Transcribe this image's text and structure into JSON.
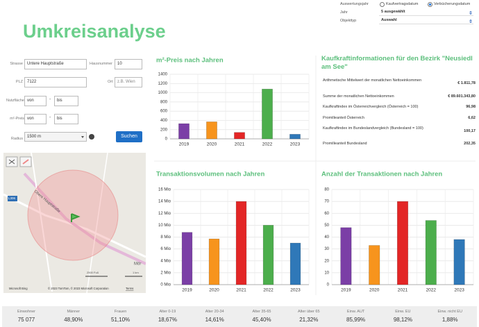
{
  "header": {
    "title": "Umkreisanalyse"
  },
  "filters": {
    "year_basis_label": "Auswertungsjahr",
    "options": [
      "Kaufvertragsdatum",
      "Verbücherungsdatum"
    ],
    "selected": "Verbücherungsdatum",
    "year_label": "Jahr",
    "year_value": "5 ausgewählt",
    "type_label": "Objekttyp",
    "type_value": "Auswahl"
  },
  "form": {
    "street_label": "Strasse",
    "street": "Untere Hauptstraße",
    "number_label": "Hausnummer",
    "number": "10",
    "zip_label": "PLZ",
    "zip": "7122",
    "city_label": "Ort",
    "city": "z.B. Wien",
    "area_label": "Nutzfläche",
    "price_label": "m²-Preis",
    "from": "von",
    "separator": "-",
    "to": "bis",
    "radius_label": "Radius",
    "radius": "1500 m",
    "button": "Suchen"
  },
  "map": {
    "road": "Obere Hauptstraße",
    "road_number": "L306",
    "town": "Mör",
    "scale_ft": "2500 Fuß",
    "scale_km": "1 km",
    "copyright": "© 2023 TomTom, © 2023 Microsoft Corporation",
    "terms": "Terms",
    "brand": "Microsoft Bing"
  },
  "info": {
    "title": "Kaufkraftinformationen für den Bezirk \"Neusiedl am See\"",
    "rows": [
      [
        "Arithmetische Mittelwert der monatlichen Nettoeinkommen",
        "€ 1.811,78"
      ],
      [
        "Summe der monatlichen Nettoeinkommen",
        "€ 89.601.343,80"
      ],
      [
        "Kaufkraftindex im Österreichvergleich (Österreich = 100)",
        "96,98"
      ],
      [
        "Promilleanteil Österreich",
        "6,62"
      ],
      [
        "Kaufkraftindex im Bundeslandvergleich (Bundesland = 100)",
        "100,17"
      ],
      [
        "Promilleanteil Bundesland",
        "202,35"
      ]
    ]
  },
  "stats": [
    {
      "label": "Einwohner",
      "value": "75 077"
    },
    {
      "label": "Männer",
      "value": "48,90%"
    },
    {
      "label": "Frauen",
      "value": "51,10%"
    },
    {
      "label": "Alter 0-19",
      "value": "18,67%"
    },
    {
      "label": "Alter 20-34",
      "value": "14,61%"
    },
    {
      "label": "Alter 35-65",
      "value": "45,40%"
    },
    {
      "label": "Alter über 65",
      "value": "21,32%"
    },
    {
      "label": "Einw. AUT",
      "value": "85,99%"
    },
    {
      "label": "Einw. EU",
      "value": "98,12%"
    },
    {
      "label": "Einw. nicht EU",
      "value": "1,88%"
    }
  ],
  "chart_data": [
    {
      "type": "bar",
      "title": "m²-Preis nach Jahren",
      "categories": [
        "2019",
        "2020",
        "2021",
        "2022",
        "2023"
      ],
      "values": [
        330,
        370,
        140,
        1080,
        100
      ],
      "colors": [
        "#7b3fa6",
        "#f7941d",
        "#e32626",
        "#4cae4c",
        "#2f78b8"
      ],
      "ylim": [
        0,
        1400
      ],
      "yticks": [
        0,
        200,
        400,
        600,
        800,
        1000,
        1200,
        1400
      ],
      "grid": true
    },
    {
      "type": "bar",
      "title": "Transaktionsvolumen nach Jahren",
      "categories": [
        "2019",
        "2020",
        "2021",
        "2022",
        "2023"
      ],
      "values": [
        8.8,
        7.7,
        14,
        10,
        7
      ],
      "colors": [
        "#7b3fa6",
        "#f7941d",
        "#e32626",
        "#4cae4c",
        "#2f78b8"
      ],
      "ylim": [
        0,
        16
      ],
      "yticks": [
        {
          "value": 0,
          "label": "0 Mio"
        },
        {
          "value": 2,
          "label": "2 Mio"
        },
        {
          "value": 4,
          "label": "4 Mio"
        },
        {
          "value": 6,
          "label": "6 Mio"
        },
        {
          "value": 8,
          "label": "8 Mio"
        },
        {
          "value": 10,
          "label": "10 Mio"
        },
        {
          "value": 12,
          "label": "12 Mio"
        },
        {
          "value": 14,
          "label": "14 Mio"
        },
        {
          "value": 16,
          "label": "16 Mio"
        }
      ],
      "grid": true
    },
    {
      "type": "bar",
      "title": "Anzahl der Transaktionen nach Jahren",
      "categories": [
        "2019",
        "2020",
        "2021",
        "2022",
        "2023"
      ],
      "values": [
        48,
        33,
        70,
        54,
        38
      ],
      "colors": [
        "#7b3fa6",
        "#f7941d",
        "#e32626",
        "#4cae4c",
        "#2f78b8"
      ],
      "ylim": [
        0,
        80
      ],
      "yticks": [
        0,
        10,
        20,
        30,
        40,
        50,
        60,
        70,
        80
      ],
      "grid": true
    }
  ]
}
